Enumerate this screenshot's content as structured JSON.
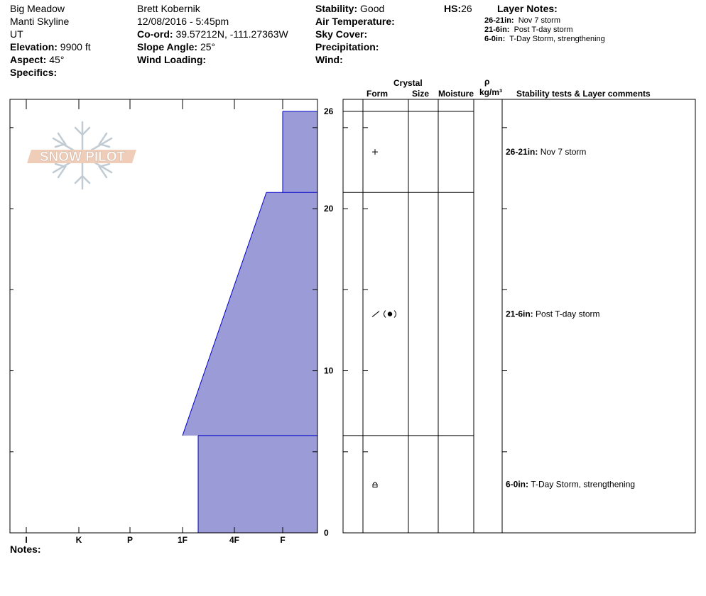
{
  "header": {
    "location": "Big Meadow",
    "range": "Manti Skyline",
    "state": "UT",
    "elevation_label": "Elevation:",
    "elevation": "9900 ft",
    "aspect_label": "Aspect:",
    "aspect": "45°",
    "specifics_label": "Specifics:",
    "observer": "Brett Kobernik",
    "datetime": "12/08/2016 - 5:45pm",
    "coord_label": "Co-ord:",
    "coord": "39.57212N, -111.27363W",
    "slope_label": "Slope Angle:",
    "slope": "25°",
    "wind_loading_label": "Wind Loading:",
    "stability_label": "Stability:",
    "stability": "Good",
    "air_temp_label": "Air Temperature:",
    "sky_cover_label": "Sky Cover:",
    "precip_label": "Precipitation:",
    "wind_label": "Wind:",
    "hs_label": "HS:",
    "hs": "26"
  },
  "layer_notes": {
    "title": "Layer Notes:",
    "items": [
      {
        "range": "26-21in:",
        "text": "Nov 7 storm"
      },
      {
        "range": "21-6in:",
        "text": "Post T-day storm"
      },
      {
        "range": "6-0in:",
        "text": "T-Day Storm, strengthening"
      }
    ]
  },
  "columns": {
    "crystal": "Crystal",
    "form": "Form",
    "size": "Size",
    "moisture": "Moisture",
    "rho": "ρ",
    "density": "kg/m³",
    "stability": "Stability tests & Layer comments"
  },
  "footer": {
    "notes_label": "Notes:"
  },
  "watermark": {
    "text": "SNOW PILOT"
  },
  "colors": {
    "hardness_fill": "#9b9bd7",
    "layer_line": "#0000c8"
  },
  "chart_data": {
    "type": "area",
    "y_unit": "in",
    "ylim": [
      0,
      26
    ],
    "yticks": [
      0,
      10,
      20,
      26
    ],
    "hardness_scale": [
      "I",
      "K",
      "P",
      "1F",
      "4F",
      "F"
    ],
    "layers": [
      {
        "top": 26,
        "bottom": 21,
        "hardness_top": "F",
        "hardness_bottom": "F",
        "grain_icon": "plus",
        "comment": {
          "range": "26-21in:",
          "text": "Nov 7 storm"
        }
      },
      {
        "top": 21,
        "bottom": 6,
        "hardness_top": "4F+",
        "hardness_bottom": "1F",
        "grain_icon": "slash-paren-dot",
        "comment": {
          "range": "21-6in:",
          "text": "Post T-day storm"
        }
      },
      {
        "top": 6,
        "bottom": 0,
        "hardness_top": "1F+",
        "hardness_bottom": "1F+",
        "grain_icon": "faceted-round",
        "comment": {
          "range": "6-0in:",
          "text": "T-Day Storm, strengthening"
        }
      }
    ]
  }
}
